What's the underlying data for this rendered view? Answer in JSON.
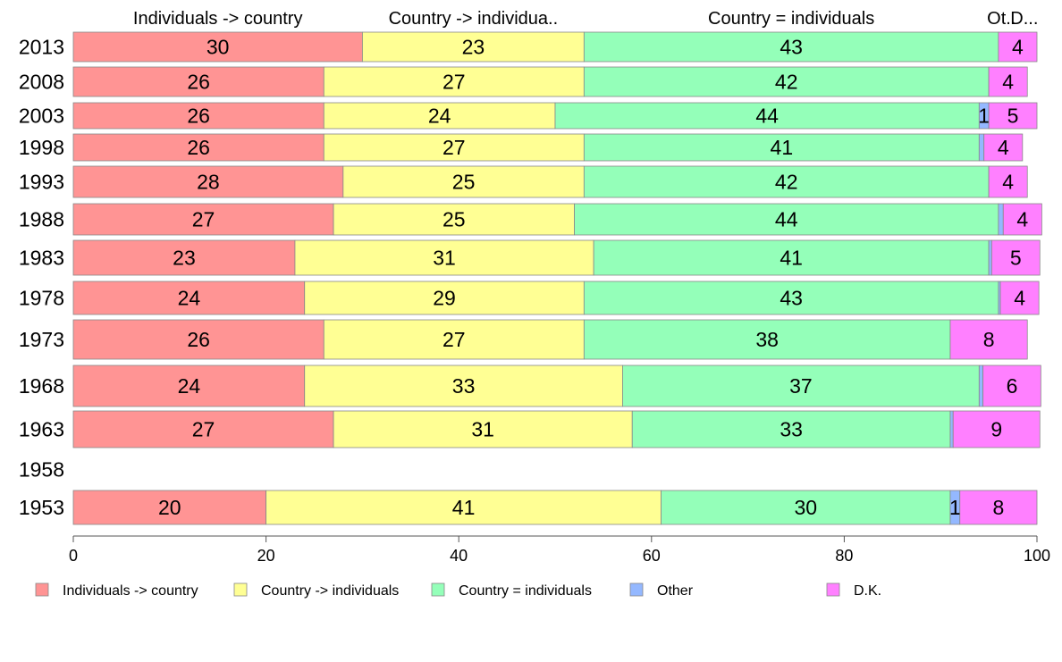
{
  "chart_data": {
    "type": "bar",
    "orientation": "horizontal",
    "stacked": true,
    "categories": [
      "2013",
      "2008",
      "2003",
      "1998",
      "1993",
      "1988",
      "1983",
      "1978",
      "1973",
      "1968",
      "1963",
      "1958",
      "1953"
    ],
    "series": [
      {
        "name": "Individuals -> country",
        "header": "Individuals -> country",
        "color": "#ff9494",
        "values": [
          30,
          26,
          26,
          26,
          28,
          27,
          23,
          24,
          26,
          24,
          27,
          null,
          20
        ]
      },
      {
        "name": "Country -> individuals",
        "header": "Country -> individua..",
        "color": "#ffff94",
        "values": [
          23,
          27,
          24,
          27,
          25,
          25,
          31,
          29,
          27,
          33,
          31,
          null,
          41
        ]
      },
      {
        "name": "Country = individuals",
        "header": "Country = individuals",
        "color": "#94ffb9",
        "values": [
          43,
          42,
          44,
          41,
          42,
          44,
          41,
          43,
          38,
          37,
          33,
          null,
          30
        ]
      },
      {
        "name": "Other",
        "header": "Ot..",
        "color": "#94b8ff",
        "values": [
          0,
          0,
          1,
          0.5,
          0,
          0.5,
          0.3,
          0.2,
          0,
          0.4,
          0.3,
          null,
          1
        ]
      },
      {
        "name": "D.K.",
        "header": "D...",
        "color": "#ff80ff",
        "values": [
          4,
          4,
          5,
          4,
          4,
          4,
          5,
          4,
          8,
          6,
          9,
          null,
          8
        ]
      }
    ],
    "xlim": [
      0,
      100
    ],
    "xticks": [
      0,
      20,
      40,
      60,
      80,
      100
    ],
    "legend_position": "bottom",
    "grid": false
  }
}
